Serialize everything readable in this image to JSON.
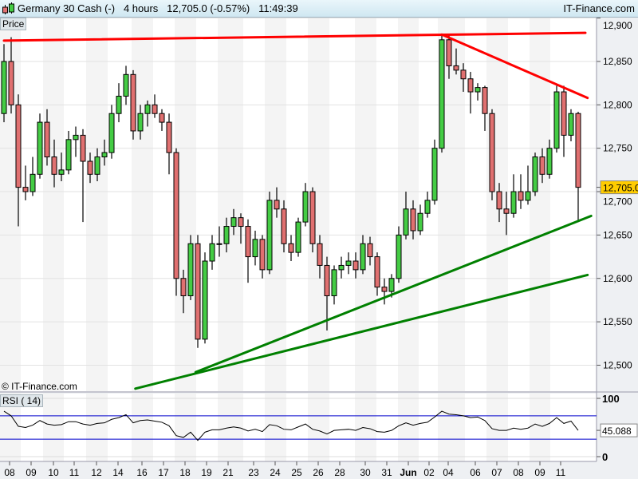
{
  "header": {
    "instrument": "Germany 30 Cash (-)",
    "timeframe": "4 hours",
    "last_price": "12,705.0 (-0.57%)",
    "time": "11:49:39",
    "brand": "IT-Finance.com"
  },
  "panes": {
    "price_label": "Price",
    "rsi_label": "RSI ( 14)",
    "copyright": "© IT-Finance.com"
  },
  "colors": {
    "up": "#44cc44",
    "down": "#e07070",
    "resistance": "#ff0000",
    "support": "#008000",
    "rsi_band": "#0000cc",
    "price_marker": "#ffcc00"
  },
  "chart_data": [
    {
      "type": "candlestick",
      "title": "Germany 30 Cash (-) 4 hours",
      "ylim": [
        12480,
        12910
      ],
      "y_ticks": [
        "12,900",
        "12,850",
        "12,800",
        "12,750",
        "12,700",
        "12,650",
        "12,600",
        "12,550",
        "12,500"
      ],
      "y_tick_values": [
        12900,
        12850,
        12800,
        12750,
        12700,
        12650,
        12600,
        12550,
        12500
      ],
      "x_tick_labels": [
        "08",
        "09",
        "10",
        "11",
        "12",
        "14",
        "16",
        "17",
        "18",
        "19",
        "21",
        "23",
        "24",
        "25",
        "26",
        "28",
        "30",
        "31",
        "Jun",
        "02",
        "04",
        "06",
        "07",
        "08",
        "09",
        "11"
      ],
      "last_price_label": "12,705.0",
      "last_price": 12705.0,
      "grid": true,
      "ohlc": [
        [
          12790,
          12870,
          12780,
          12850
        ],
        [
          12850,
          12878,
          12790,
          12800
        ],
        [
          12800,
          12812,
          12660,
          12705
        ],
        [
          12705,
          12730,
          12690,
          12700
        ],
        [
          12700,
          12740,
          12695,
          12720
        ],
        [
          12720,
          12790,
          12715,
          12780
        ],
        [
          12780,
          12795,
          12730,
          12740
        ],
        [
          12740,
          12760,
          12705,
          12720
        ],
        [
          12720,
          12745,
          12712,
          12725
        ],
        [
          12725,
          12770,
          12720,
          12760
        ],
        [
          12760,
          12775,
          12740,
          12765
        ],
        [
          12765,
          12772,
          12665,
          12735
        ],
        [
          12735,
          12745,
          12710,
          12720
        ],
        [
          12720,
          12750,
          12712,
          12740
        ],
        [
          12740,
          12760,
          12730,
          12745
        ],
        [
          12745,
          12800,
          12738,
          12790
        ],
        [
          12790,
          12825,
          12780,
          12810
        ],
        [
          12810,
          12845,
          12800,
          12835
        ],
        [
          12835,
          12840,
          12760,
          12770
        ],
        [
          12770,
          12800,
          12760,
          12790
        ],
        [
          12790,
          12805,
          12775,
          12800
        ],
        [
          12800,
          12812,
          12785,
          12790
        ],
        [
          12790,
          12795,
          12770,
          12780
        ],
        [
          12780,
          12790,
          12720,
          12745
        ],
        [
          12745,
          12750,
          12580,
          12600
        ],
        [
          12600,
          12610,
          12560,
          12580
        ],
        [
          12580,
          12650,
          12575,
          12640
        ],
        [
          12640,
          12650,
          12520,
          12530
        ],
        [
          12530,
          12630,
          12525,
          12620
        ],
        [
          12620,
          12650,
          12610,
          12640
        ],
        [
          12640,
          12660,
          12625,
          12640
        ],
        [
          12640,
          12670,
          12630,
          12660
        ],
        [
          12660,
          12680,
          12650,
          12670
        ],
        [
          12670,
          12675,
          12640,
          12660
        ],
        [
          12660,
          12668,
          12595,
          12625
        ],
        [
          12625,
          12655,
          12615,
          12645
        ],
        [
          12645,
          12650,
          12600,
          12610
        ],
        [
          12610,
          12700,
          12605,
          12690
        ],
        [
          12690,
          12705,
          12670,
          12680
        ],
        [
          12680,
          12690,
          12630,
          12640
        ],
        [
          12640,
          12650,
          12620,
          12630
        ],
        [
          12630,
          12670,
          12625,
          12665
        ],
        [
          12665,
          12710,
          12660,
          12700
        ],
        [
          12700,
          12705,
          12630,
          12640
        ],
        [
          12640,
          12650,
          12600,
          12615
        ],
        [
          12615,
          12625,
          12540,
          12580
        ],
        [
          12580,
          12615,
          12570,
          12610
        ],
        [
          12610,
          12625,
          12600,
          12615
        ],
        [
          12615,
          12630,
          12605,
          12620
        ],
        [
          12620,
          12630,
          12600,
          12610
        ],
        [
          12610,
          12650,
          12605,
          12640
        ],
        [
          12640,
          12648,
          12615,
          12625
        ],
        [
          12625,
          12630,
          12580,
          12590
        ],
        [
          12590,
          12600,
          12570,
          12585
        ],
        [
          12585,
          12605,
          12578,
          12600
        ],
        [
          12600,
          12660,
          12595,
          12650
        ],
        [
          12650,
          12700,
          12645,
          12680
        ],
        [
          12680,
          12690,
          12645,
          12655
        ],
        [
          12655,
          12685,
          12650,
          12675
        ],
        [
          12675,
          12700,
          12670,
          12690
        ],
        [
          12690,
          12760,
          12685,
          12750
        ],
        [
          12750,
          12880,
          12745,
          12875
        ],
        [
          12875,
          12880,
          12830,
          12845
        ],
        [
          12845,
          12865,
          12835,
          12840
        ],
        [
          12840,
          12848,
          12815,
          12830
        ],
        [
          12830,
          12838,
          12790,
          12815
        ],
        [
          12815,
          12825,
          12805,
          12820
        ],
        [
          12820,
          12822,
          12770,
          12790
        ],
        [
          12790,
          12795,
          12690,
          12700
        ],
        [
          12700,
          12710,
          12665,
          12680
        ],
        [
          12680,
          12700,
          12650,
          12675
        ],
        [
          12675,
          12720,
          12670,
          12700
        ],
        [
          12700,
          12720,
          12680,
          12690
        ],
        [
          12690,
          12730,
          12685,
          12700
        ],
        [
          12700,
          12745,
          12695,
          12740
        ],
        [
          12740,
          12750,
          12710,
          12720
        ],
        [
          12720,
          12760,
          12715,
          12750
        ],
        [
          12750,
          12822,
          12745,
          12815
        ],
        [
          12815,
          12822,
          12740,
          12765
        ],
        [
          12765,
          12795,
          12758,
          12790
        ],
        [
          12790,
          12792,
          12665,
          12705
        ]
      ],
      "trendlines": [
        {
          "color": "resistance",
          "from": [
            0,
            12874
          ],
          "to": [
            81,
            12883
          ]
        },
        {
          "color": "resistance",
          "from": [
            61,
            12881
          ],
          "to": [
            81.3,
            12808
          ]
        },
        {
          "color": "support",
          "from": [
            26.7,
            12492
          ],
          "to": [
            81.8,
            12672
          ]
        },
        {
          "color": "support",
          "from": [
            18.3,
            12473
          ],
          "to": [
            81.3,
            12604
          ]
        }
      ]
    },
    {
      "type": "line",
      "title": "RSI ( 14)",
      "ylim": [
        0,
        100
      ],
      "y_ticks": [
        "100",
        "0"
      ],
      "y_tick_values": [
        100,
        0
      ],
      "bands": [
        70,
        30
      ],
      "last_value_label": "45.088",
      "values": [
        78,
        70,
        52,
        50,
        54,
        62,
        56,
        54,
        55,
        60,
        60,
        56,
        54,
        57,
        58,
        64,
        67,
        72,
        58,
        62,
        63,
        61,
        59,
        53,
        36,
        33,
        42,
        28,
        42,
        46,
        46,
        49,
        51,
        49,
        44,
        47,
        43,
        55,
        53,
        47,
        46,
        51,
        56,
        47,
        44,
        39,
        45,
        46,
        47,
        45,
        50,
        48,
        43,
        42,
        45,
        53,
        58,
        54,
        57,
        59,
        68,
        78,
        73,
        72,
        70,
        67,
        68,
        62,
        48,
        45,
        45,
        49,
        47,
        49,
        56,
        52,
        57,
        67,
        57,
        61,
        45.088
      ]
    }
  ]
}
